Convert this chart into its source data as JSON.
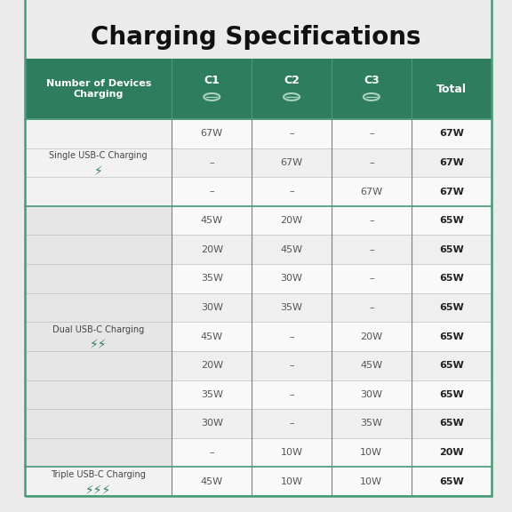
{
  "title": "Charging Specifications",
  "title_fontsize": 20,
  "title_fontweight": "bold",
  "background_color": "#ebebeb",
  "header_bg_color": "#2e7d5e",
  "header_text_color": "#ffffff",
  "section_bg_single": "#f2f2f2",
  "section_bg_dual": "#e6e6e6",
  "section_bg_triple": "#f2f2f2",
  "data_col_bg_odd": "#f9f9f9",
  "data_col_bg_even": "#efefef",
  "cell_text_color": "#555555",
  "total_text_color": "#222222",
  "green_accent": "#2e7d5e",
  "table_border_color": "#4a9a78",
  "inner_line_color": "#c0c0c0",
  "section_line_color": "#4a9a78",
  "col_headers": [
    "Number of Devices\nCharging",
    "C1",
    "C2",
    "C3",
    "Total"
  ],
  "usb_icon": "⦿",
  "sections": [
    {
      "label": "Single USB-C Charging",
      "icon_count": 1,
      "bg": "#f2f2f2",
      "rows": [
        [
          "67W",
          "–",
          "–",
          "67W"
        ],
        [
          "–",
          "67W",
          "–",
          "67W"
        ],
        [
          "–",
          "–",
          "67W",
          "67W"
        ]
      ]
    },
    {
      "label": "Dual USB-C Charging",
      "icon_count": 2,
      "bg": "#e6e6e6",
      "rows": [
        [
          "45W",
          "20W",
          "–",
          "65W"
        ],
        [
          "20W",
          "45W",
          "–",
          "65W"
        ],
        [
          "35W",
          "30W",
          "–",
          "65W"
        ],
        [
          "30W",
          "35W",
          "–",
          "65W"
        ],
        [
          "45W",
          "–",
          "20W",
          "65W"
        ],
        [
          "20W",
          "–",
          "45W",
          "65W"
        ],
        [
          "35W",
          "–",
          "30W",
          "65W"
        ],
        [
          "30W",
          "–",
          "35W",
          "65W"
        ],
        [
          "–",
          "10W",
          "10W",
          "20W"
        ]
      ]
    },
    {
      "label": "Triple USB-C Charging",
      "icon_count": 3,
      "bg": "#f2f2f2",
      "rows": [
        [
          "45W",
          "10W",
          "10W",
          "65W"
        ]
      ]
    }
  ]
}
